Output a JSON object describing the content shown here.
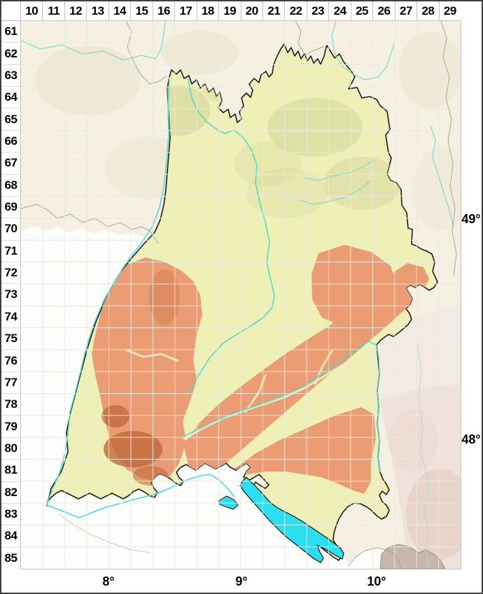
{
  "grid": {
    "column_labels": [
      "10",
      "11",
      "12",
      "13",
      "14",
      "15",
      "16",
      "17",
      "18",
      "19",
      "20",
      "21",
      "22",
      "23",
      "24",
      "25",
      "26",
      "27",
      "28",
      "29"
    ],
    "row_labels": [
      "61",
      "62",
      "63",
      "64",
      "65",
      "66",
      "67",
      "68",
      "69",
      "70",
      "71",
      "72",
      "73",
      "74",
      "75",
      "76",
      "77",
      "78",
      "79",
      "80",
      "81",
      "82",
      "83",
      "84",
      "85"
    ]
  },
  "geo_labels": {
    "latitudes": [
      {
        "text": "49°"
      },
      {
        "text": "48°"
      }
    ],
    "longitudes": [
      {
        "text": "8°"
      },
      {
        "text": "9°"
      },
      {
        "text": "10°"
      }
    ]
  },
  "colors": {
    "outer_border": "#3f3f3f",
    "margin_bg": "#ffffff",
    "label_text": "#000000",
    "separator": "#c2c2c2",
    "outside_land": "#f5f0e2",
    "outside_white": "#fdfdfb",
    "state_lowland": "#eef0b5",
    "hills_khaki": "#d9dba0",
    "uplands_salmon": "#eb9c73",
    "uplands_dark": "#c06a3c",
    "foothills_gray": "#c9b7aa",
    "bavaria_pink": "#f0e1da",
    "river": "#3fdfcc",
    "river_pale": "#7ae0cd",
    "lake": "#2bdfee",
    "state_border": "#1b1b1b",
    "grid_line": "#e9e9e3"
  }
}
